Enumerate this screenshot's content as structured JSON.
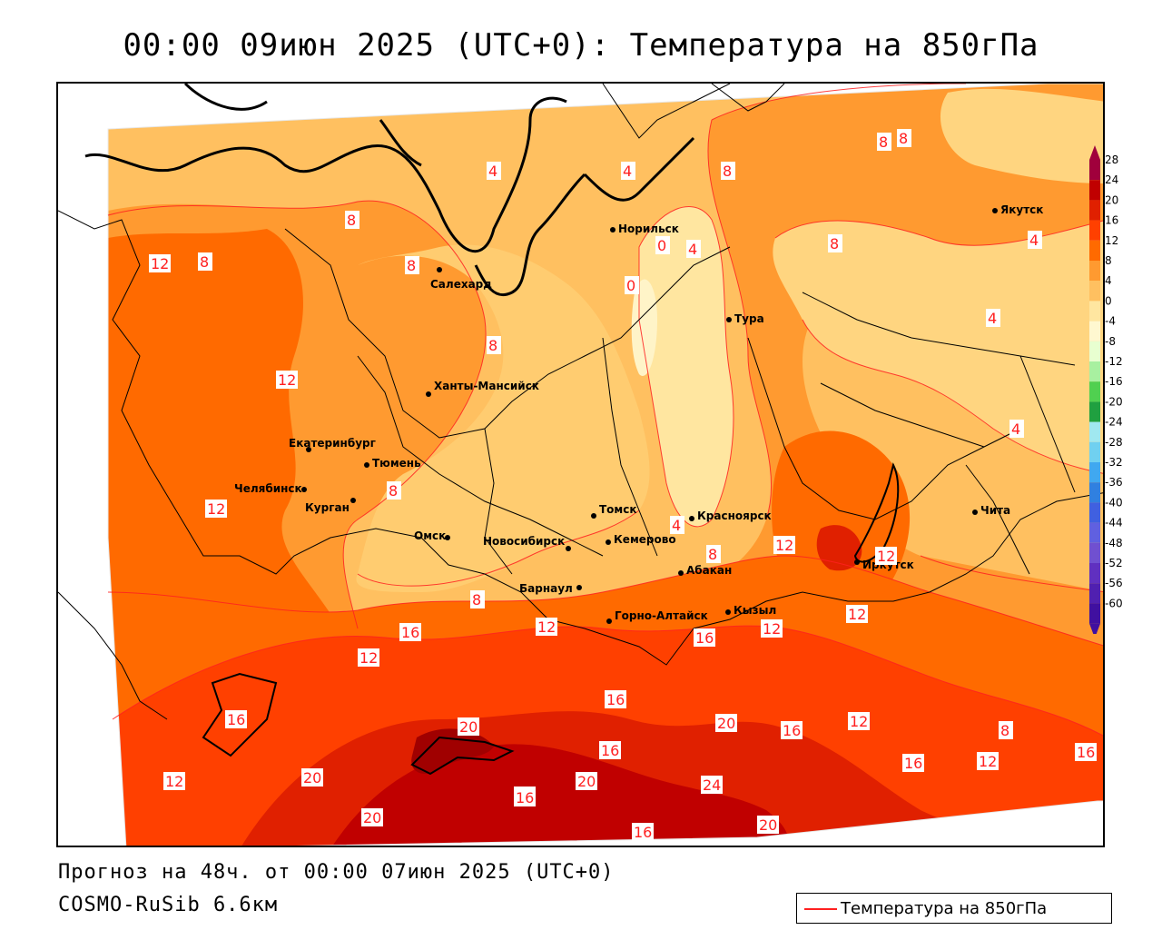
{
  "title": "00:00 09июн 2025 (UTC+0): Температура на 850гПа",
  "footer": {
    "forecast": "Прогноз на 48ч. от 00:00 07июн 2025 (UTC+0)",
    "model": "COSMO-RuSib 6.6км"
  },
  "legend": {
    "label": "Температура на 850гПа",
    "color": "#ff2020"
  },
  "colorbar": {
    "labels": [
      "28",
      "24",
      "20",
      "16",
      "12",
      "8",
      "4",
      "0",
      "-4",
      "-8",
      "-12",
      "-16",
      "-20",
      "-24",
      "-28",
      "-32",
      "-36",
      "-40",
      "-44",
      "-48",
      "-52",
      "-56",
      "-60"
    ],
    "colors": [
      "#a0003c",
      "#c00000",
      "#e02000",
      "#ff4000",
      "#ff6a00",
      "#ff9a30",
      "#ffc060",
      "#ffe6a0",
      "#fff8d0",
      "#e8ffd0",
      "#a8f0a0",
      "#50d050",
      "#20a040",
      "#a0e8f0",
      "#70d0f0",
      "#40a8f0",
      "#3080e0",
      "#4060e0",
      "#6060e0",
      "#7050d0",
      "#6030c0",
      "#5020b0",
      "#4010a0"
    ]
  },
  "cities": [
    {
      "name": "Якутск"
    },
    {
      "name": "Норильск"
    },
    {
      "name": "Салехард"
    },
    {
      "name": "Тура"
    },
    {
      "name": "Ханты-Мансийск"
    },
    {
      "name": "Екатеринбург"
    },
    {
      "name": "Тюмень"
    },
    {
      "name": "Челябинск"
    },
    {
      "name": "Курган"
    },
    {
      "name": "Омск"
    },
    {
      "name": "Новосибирск"
    },
    {
      "name": "Томск"
    },
    {
      "name": "Красноярск"
    },
    {
      "name": "Кемерово"
    },
    {
      "name": "Абакан"
    },
    {
      "name": "Барнаул"
    },
    {
      "name": "Горно-Алтайск"
    },
    {
      "name": "Кызыл"
    },
    {
      "name": "Иркутск"
    },
    {
      "name": "Чита"
    }
  ],
  "contour_labels": [
    "8",
    "8",
    "4",
    "4",
    "8",
    "8",
    "12",
    "8",
    "8",
    "4",
    "0",
    "0",
    "4",
    "8",
    "4",
    "12",
    "4",
    "8",
    "12",
    "8",
    "12",
    "4",
    "8",
    "12",
    "8",
    "12",
    "12",
    "12",
    "16",
    "12",
    "16",
    "16",
    "16",
    "20",
    "16",
    "20",
    "16",
    "12",
    "16",
    "12",
    "8",
    "16",
    "12",
    "16",
    "20",
    "20",
    "24",
    "16",
    "20",
    "16",
    "20"
  ]
}
